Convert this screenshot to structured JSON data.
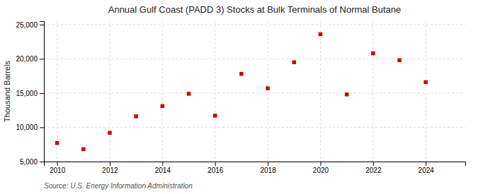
{
  "chart_data": {
    "type": "scatter",
    "title": "Annual Gulf Coast (PADD 3) Stocks at Bulk Terminals of Normal Butane",
    "ylabel": "Thousand Barrels",
    "source": "Source: U.S. Energy Information Administration",
    "x": [
      2010,
      2011,
      2012,
      2013,
      2014,
      2015,
      2016,
      2017,
      2018,
      2019,
      2020,
      2021,
      2022,
      2023,
      2024
    ],
    "y": [
      7700,
      6800,
      9200,
      11600,
      13100,
      14900,
      11700,
      17800,
      15700,
      19500,
      23600,
      14800,
      20800,
      19800,
      16600
    ],
    "color": "#cc0000",
    "marker": "square",
    "xlim": [
      2009.5,
      2025.5
    ],
    "ylim": [
      5000,
      25500
    ],
    "xticks": [
      2010,
      2012,
      2014,
      2016,
      2018,
      2020,
      2022,
      2024
    ],
    "yticks": [
      {
        "value": 5000,
        "label": "5,000"
      },
      {
        "value": 10000,
        "label": "10,000"
      },
      {
        "value": 15000,
        "label": "15,000"
      },
      {
        "value": 20000,
        "label": "20,000"
      },
      {
        "value": 25000,
        "label": "25,000"
      }
    ],
    "grid": true
  }
}
